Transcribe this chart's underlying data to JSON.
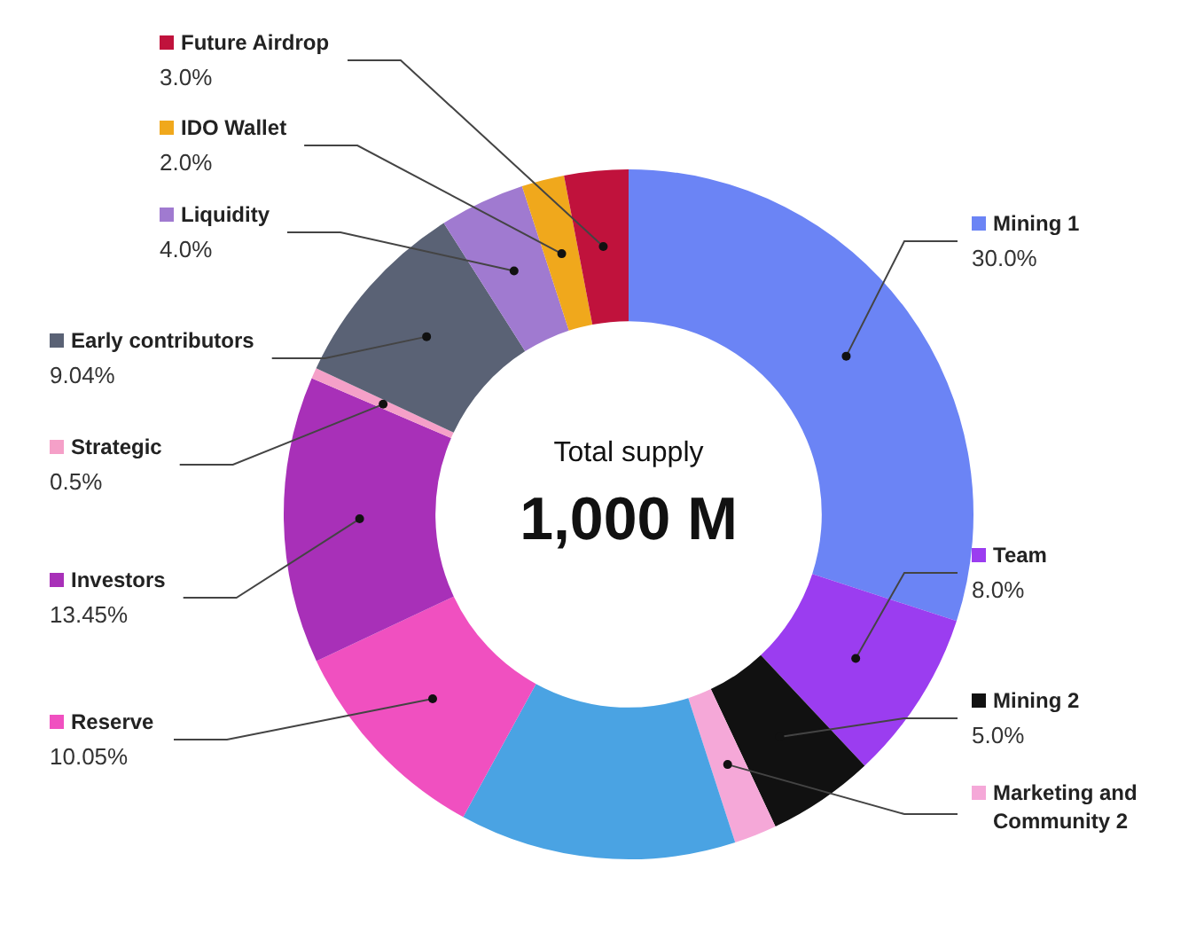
{
  "chart_data": {
    "type": "donut",
    "categories": [
      "Mining 1",
      "Team",
      "Mining 2",
      "Marketing and Community 2",
      null,
      "Reserve",
      "Investors",
      "Strategic",
      "Early contributors",
      "Liquidity",
      "IDO Wallet",
      "Future Airdrop"
    ],
    "values": [
      30.0,
      8.0,
      5.0,
      2.0,
      12.96,
      10.05,
      13.45,
      0.5,
      9.04,
      4.0,
      2.0,
      3.0
    ],
    "value_labels": [
      "30.0%",
      "8.0%",
      "5.0%",
      null,
      null,
      "10.05%",
      "13.45%",
      "0.5%",
      "9.04%",
      "4.0%",
      "2.0%",
      "3.0%"
    ],
    "colors": [
      "#6b84f5",
      "#9b3df0",
      "#111111",
      "#f5a8d8",
      "#4aa3e3",
      "#f050c0",
      "#a830b8",
      "#f5a0c8",
      "#5a6275",
      "#a07ad0",
      "#f0a81c",
      "#c0123c"
    ],
    "annotations": [
      "Total supply",
      "1,000 M"
    ],
    "legend": "left"
  }
}
